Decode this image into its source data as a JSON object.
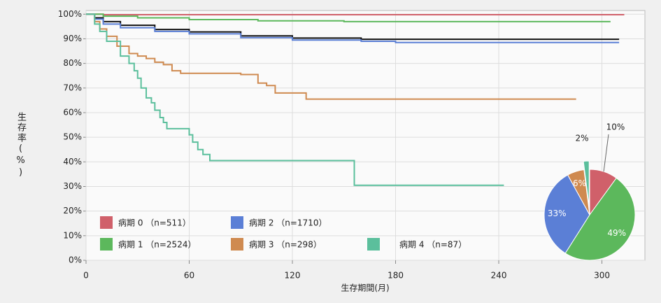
{
  "chart_data": [
    {
      "type": "step",
      "x_label": "生存期間(月)",
      "y_label": "生存率(%)",
      "xlim": [
        0,
        325
      ],
      "ylim": [
        0,
        101.5
      ],
      "xticks": [
        0,
        60,
        120,
        180,
        240,
        300
      ],
      "yticks": [
        {
          "value": 0,
          "label": "0%"
        },
        {
          "value": 10,
          "label": "10%"
        },
        {
          "value": 20,
          "label": "20%"
        },
        {
          "value": 30,
          "label": "30%"
        },
        {
          "value": 40,
          "label": "40%"
        },
        {
          "value": 50,
          "label": "50%"
        },
        {
          "value": 60,
          "label": "60%"
        },
        {
          "value": 70,
          "label": "70%"
        },
        {
          "value": 80,
          "label": "80%"
        },
        {
          "value": 90,
          "label": "90%"
        },
        {
          "value": 100,
          "label": "100%"
        }
      ],
      "grid": true,
      "series": [
        {
          "color": "#111111",
          "x": [
            0,
            5,
            10,
            20,
            40,
            60,
            90,
            120,
            160,
            310
          ],
          "values": [
            100,
            98.5,
            97,
            95.5,
            93.8,
            92.8,
            91.2,
            90.3,
            89.8,
            89.8
          ]
        },
        {
          "name": "病期 0 （n=511）",
          "color": "#d0606a",
          "x": [
            0,
            10,
            313
          ],
          "values": [
            100,
            99.8,
            99.8
          ]
        },
        {
          "name": "病期 1 （n=2524）",
          "color": "#5cb85c",
          "x": [
            0,
            10,
            30,
            60,
            100,
            150,
            305
          ],
          "values": [
            100,
            99.2,
            98.5,
            97.8,
            97.3,
            97.0,
            97.0
          ]
        },
        {
          "name": "病期 2 （n=1710）",
          "color": "#5b7fd6",
          "x": [
            0,
            5,
            10,
            20,
            40,
            60,
            90,
            120,
            160,
            180,
            310
          ],
          "values": [
            100,
            98,
            96,
            94.5,
            93,
            92,
            90.5,
            89.5,
            89,
            88.5,
            88.5
          ]
        },
        {
          "name": "病期 3 （n=298）",
          "color": "#cf8a50",
          "x": [
            0,
            5,
            8,
            12,
            18,
            25,
            30,
            35,
            40,
            45,
            50,
            55,
            90,
            100,
            105,
            110,
            128,
            285
          ],
          "values": [
            100,
            97,
            94,
            91,
            87,
            84,
            83,
            82,
            80.5,
            79.5,
            77,
            76,
            75.5,
            72,
            71,
            68,
            65.5,
            65.5
          ]
        },
        {
          "name": "病期 4 （n=87）",
          "color": "#5bbf9c",
          "x": [
            0,
            5,
            8,
            12,
            20,
            25,
            28,
            30,
            32,
            35,
            38,
            40,
            43,
            45,
            47,
            60,
            62,
            65,
            68,
            72,
            155,
            156,
            243
          ],
          "values": [
            100,
            96,
            93,
            89,
            83,
            80,
            77,
            74,
            70,
            66,
            64,
            61,
            58,
            56,
            53.5,
            51,
            48,
            45,
            43,
            40.5,
            40.5,
            30.5,
            30.5
          ]
        }
      ]
    },
    {
      "type": "pie",
      "values": [
        10,
        49,
        33,
        6,
        2
      ],
      "value_labels": [
        "10%",
        "49%",
        "33%",
        "6%",
        "2%"
      ],
      "colors": [
        "#d0606a",
        "#5cb85c",
        "#5b7fd6",
        "#cf8a50",
        "#5bbf9c"
      ]
    }
  ]
}
